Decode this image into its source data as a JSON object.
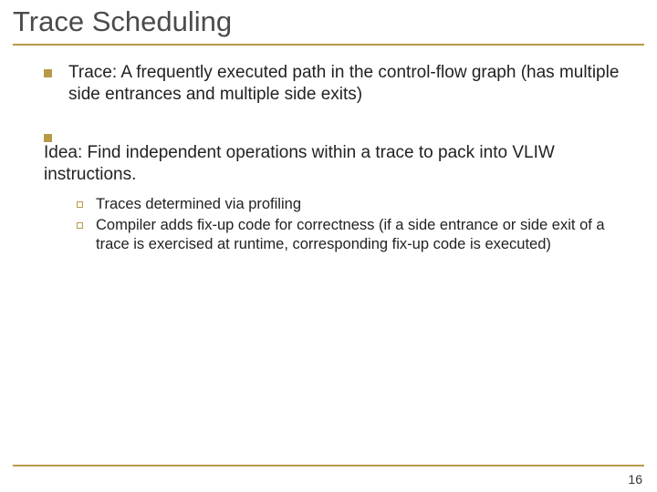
{
  "colors": {
    "accent": "#b79a47",
    "title_text": "#4b4b4b",
    "body_text": "#222222",
    "background": "#ffffff"
  },
  "title": "Trace Scheduling",
  "bullets": [
    {
      "text": "Trace: A frequently executed path in the control-flow graph (has multiple side entrances and multiple side exits)",
      "children": []
    },
    {
      "text": "Idea: Find independent operations within a trace to pack into VLIW instructions.",
      "children": [
        {
          "text": "Traces determined via profiling"
        },
        {
          "text": "Compiler adds fix-up code for correctness (if a side entrance or side exit of a trace is exercised at runtime, corresponding fix-up code is executed)"
        }
      ]
    }
  ],
  "page_number": "16"
}
